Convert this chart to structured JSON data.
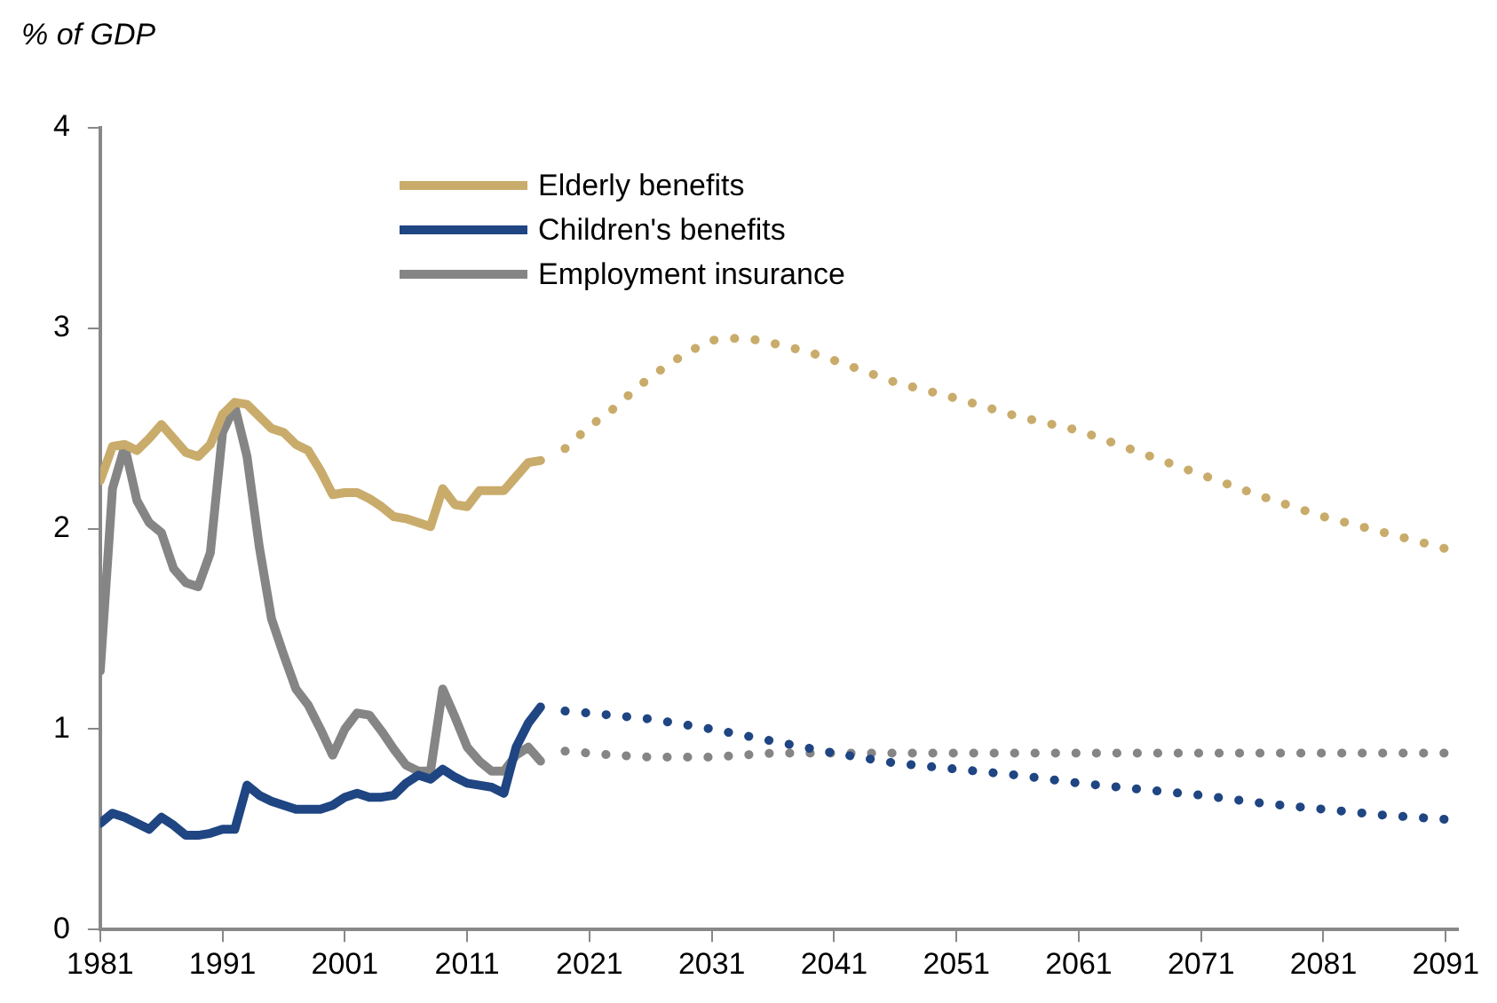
{
  "chart_data": {
    "type": "line",
    "ylabel": "% of GDP",
    "xlim": [
      1981,
      2092
    ],
    "xticks": [
      1981,
      1991,
      2001,
      2011,
      2021,
      2031,
      2041,
      2051,
      2061,
      2071,
      2081,
      2091
    ],
    "ylim": [
      0,
      4
    ],
    "yticks": [
      0,
      1,
      2,
      3,
      4
    ],
    "grid": false,
    "legend": "top",
    "marker": "none",
    "x": [
      1981,
      1982,
      1983,
      1984,
      1985,
      1986,
      1987,
      1988,
      1989,
      1990,
      1991,
      1992,
      1993,
      1994,
      1995,
      1996,
      1997,
      1998,
      1999,
      2000,
      2001,
      2002,
      2003,
      2004,
      2005,
      2006,
      2007,
      2008,
      2009,
      2010,
      2011,
      2012,
      2013,
      2014,
      2015,
      2016,
      2017
    ],
    "series": [
      {
        "name": "Elderly benefits",
        "color": "#c9ac6b",
        "line_style": "solid",
        "values": [
          2.24,
          2.41,
          2.42,
          2.39,
          2.45,
          2.52,
          2.45,
          2.38,
          2.36,
          2.42,
          2.57,
          2.63,
          2.62,
          2.56,
          2.5,
          2.48,
          2.42,
          2.39,
          2.29,
          2.17,
          2.18,
          2.18,
          2.15,
          2.11,
          2.06,
          2.05,
          2.03,
          2.01,
          2.2,
          2.12,
          2.11,
          2.19,
          2.19,
          2.19,
          2.26,
          2.33,
          2.34
        ]
      },
      {
        "name": "Children's benefits",
        "color": "#1f4582",
        "line_style": "solid",
        "values": [
          0.53,
          0.58,
          0.56,
          0.53,
          0.5,
          0.56,
          0.52,
          0.47,
          0.47,
          0.48,
          0.5,
          0.5,
          0.72,
          0.67,
          0.64,
          0.62,
          0.6,
          0.6,
          0.6,
          0.62,
          0.66,
          0.68,
          0.66,
          0.66,
          0.67,
          0.73,
          0.77,
          0.75,
          0.8,
          0.76,
          0.73,
          0.72,
          0.71,
          0.68,
          0.91,
          1.03,
          1.11
        ]
      },
      {
        "name": "Employment insurance",
        "color": "#858585",
        "line_style": "solid",
        "values": [
          1.29,
          2.2,
          2.41,
          2.14,
          2.03,
          1.98,
          1.8,
          1.73,
          1.71,
          1.88,
          2.48,
          2.61,
          2.36,
          1.91,
          1.55,
          1.37,
          1.2,
          1.12,
          1.0,
          0.87,
          1.0,
          1.08,
          1.07,
          0.99,
          0.9,
          0.82,
          0.79,
          0.79,
          1.2,
          1.06,
          0.91,
          0.84,
          0.79,
          0.79,
          0.87,
          0.91,
          0.84
        ]
      },
      {
        "color": "#c9ac6b",
        "line_style": "dotted",
        "x": [
          2019,
          2021,
          2023,
          2025,
          2027,
          2029,
          2031,
          2033,
          2035,
          2037,
          2039,
          2041,
          2046,
          2051,
          2056,
          2061,
          2066,
          2071,
          2076,
          2081,
          2086,
          2091
        ],
        "values": [
          2.4,
          2.51,
          2.6,
          2.71,
          2.8,
          2.88,
          2.94,
          2.95,
          2.94,
          2.91,
          2.88,
          2.84,
          2.73,
          2.65,
          2.56,
          2.49,
          2.38,
          2.27,
          2.16,
          2.06,
          1.98,
          1.9
        ]
      },
      {
        "color": "#1f4582",
        "line_style": "dotted",
        "x": [
          2019,
          2021,
          2026,
          2031,
          2036,
          2041,
          2046,
          2051,
          2056,
          2061,
          2066,
          2071,
          2076,
          2081,
          2086,
          2091
        ],
        "values": [
          1.09,
          1.08,
          1.05,
          1.0,
          0.94,
          0.88,
          0.83,
          0.8,
          0.77,
          0.73,
          0.7,
          0.67,
          0.63,
          0.6,
          0.57,
          0.55
        ]
      },
      {
        "color": "#858585",
        "line_style": "dotted",
        "x": [
          2019,
          2021,
          2023,
          2026,
          2031,
          2036,
          2041,
          2051,
          2061,
          2071,
          2081,
          2091
        ],
        "values": [
          0.89,
          0.88,
          0.87,
          0.86,
          0.86,
          0.88,
          0.88,
          0.88,
          0.88,
          0.88,
          0.88,
          0.88
        ]
      }
    ]
  }
}
